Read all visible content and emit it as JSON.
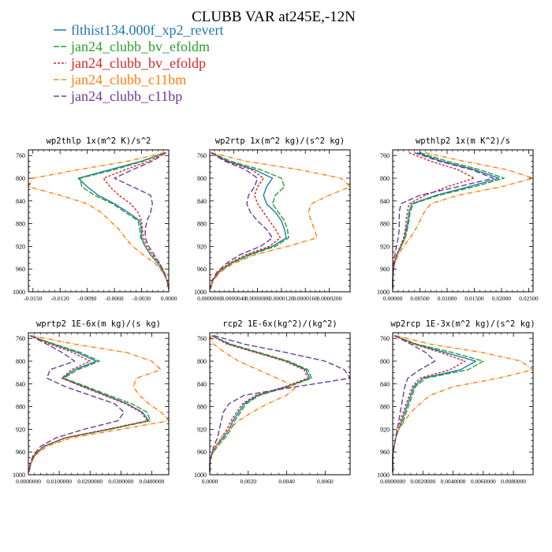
{
  "title": "CLUBB VAR at245E,-12N",
  "legend": [
    {
      "name": "flthist134.000f_xp2_revert",
      "color": "#1f77b4",
      "dash": ""
    },
    {
      "name": "jan24_clubb_bv_efoldm",
      "color": "#2ca02c",
      "dash": "7,2"
    },
    {
      "name": "jan24_clubb_bv_efoldp",
      "color": "#d62728",
      "dash": "3,2"
    },
    {
      "name": "jan24_clubb_c11bm",
      "color": "#ff7f0e",
      "dash": "6,2,1,2"
    },
    {
      "name": "jan24_clubb_c11bp",
      "color": "#6a3d9a",
      "dash": "7,3"
    }
  ],
  "chart_data": [
    {
      "type": "line",
      "title": "wp2thlp  1x(m^2 K)/s^2",
      "ylim": [
        1000,
        750
      ],
      "xlim": [
        -0.0155,
        0.0
      ],
      "xticks": [
        -0.015,
        -0.012,
        -0.009,
        -0.006,
        -0.003,
        0.0
      ],
      "xtick_labels": [
        "-0.0150",
        "-0.0120",
        "-0.0090",
        "-0.0060",
        "-0.0030",
        "0.0000"
      ],
      "yticks": [
        760,
        800,
        840,
        880,
        920,
        960,
        1000
      ],
      "y": [
        755,
        770,
        785,
        800,
        815,
        830,
        845,
        860,
        875,
        890,
        905,
        920,
        935,
        950,
        965,
        980,
        995
      ],
      "series": [
        {
          "values": [
            -0.0004,
            -0.003,
            -0.0065,
            -0.01,
            -0.009,
            -0.0078,
            -0.006,
            -0.0045,
            -0.0032,
            -0.003,
            -0.003,
            -0.0026,
            -0.002,
            -0.0012,
            -0.0006,
            -0.0002,
            0.0
          ]
        },
        {
          "values": [
            -0.0004,
            -0.0028,
            -0.006,
            -0.0098,
            -0.0096,
            -0.0082,
            -0.0062,
            -0.0048,
            -0.0034,
            -0.0032,
            -0.0031,
            -0.0026,
            -0.002,
            -0.0012,
            -0.0006,
            -0.0002,
            0.0
          ]
        },
        {
          "values": [
            -0.0004,
            -0.0022,
            -0.0048,
            -0.0072,
            -0.0065,
            -0.0055,
            -0.0042,
            -0.0034,
            -0.003,
            -0.0029,
            -0.0028,
            -0.0024,
            -0.0018,
            -0.001,
            -0.0005,
            -0.0002,
            0.0
          ]
        },
        {
          "values": [
            -0.0005,
            -0.0045,
            -0.01,
            -0.015,
            -0.0155,
            -0.012,
            -0.009,
            -0.0075,
            -0.0065,
            -0.0055,
            -0.0048,
            -0.004,
            -0.0028,
            -0.0015,
            -0.0007,
            -0.0002,
            0.0
          ]
        },
        {
          "values": [
            -0.0003,
            -0.0018,
            -0.004,
            -0.006,
            -0.004,
            -0.002,
            -0.0018,
            -0.002,
            -0.0024,
            -0.0026,
            -0.0026,
            -0.0022,
            -0.0016,
            -0.001,
            -0.0005,
            -0.0002,
            0.0
          ]
        }
      ]
    },
    {
      "type": "line",
      "title": "wp2rtp  1x(m^2 kg)/(s^2 kg)",
      "ylim": [
        1000,
        750
      ],
      "xlim": [
        0.0,
        2.35e-05
      ],
      "xticks": [
        0.0,
        4e-06,
        8e-06,
        1.2e-05,
        1.6e-05,
        2e-05
      ],
      "xtick_labels": [
        "0.0000000",
        "0.0000040",
        "0.0000080",
        "0.0000120",
        "0.0000160",
        "0.0000200"
      ],
      "yticks": [
        760,
        800,
        840,
        880,
        920,
        960,
        1000
      ],
      "y": [
        755,
        770,
        785,
        800,
        815,
        830,
        845,
        860,
        875,
        890,
        905,
        920,
        935,
        950,
        965,
        980,
        995
      ],
      "series": [
        {
          "values": [
            2e-07,
            3e-06,
            7.5e-06,
            1.05e-05,
            9.5e-06,
            9e-06,
            9.5e-06,
            1.1e-05,
            1.2e-05,
            1.25e-05,
            1.28e-05,
            1.05e-05,
            6.5e-06,
            3.5e-06,
            1.5e-06,
            5e-07,
            1e-07
          ]
        },
        {
          "values": [
            2e-07,
            3.5e-06,
            8.5e-06,
            1.2e-05,
            1.25e-05,
            1.1e-05,
            1.05e-05,
            1.15e-05,
            1.25e-05,
            1.3e-05,
            1.32e-05,
            1.1e-05,
            6.8e-06,
            3.6e-06,
            1.6e-06,
            5e-07,
            1e-07
          ]
        },
        {
          "values": [
            2e-07,
            2.8e-06,
            7e-06,
            9e-06,
            8e-06,
            7.5e-06,
            8e-06,
            9e-06,
            1e-05,
            1.1e-05,
            1.18e-05,
            1e-05,
            6e-06,
            3.2e-06,
            1.4e-06,
            5e-07,
            1e-07
          ]
        },
        {
          "values": [
            3e-07,
            6e-06,
            1.5e-05,
            2.2e-05,
            2.35e-05,
            2e-05,
            1.7e-05,
            1.65e-05,
            1.7e-05,
            1.75e-05,
            1.8e-05,
            1.3e-05,
            7.5e-06,
            4e-06,
            1.8e-06,
            6e-07,
            1e-07
          ]
        },
        {
          "values": [
            2e-07,
            2.5e-06,
            6e-06,
            8e-06,
            7.5e-06,
            6.5e-06,
            6.2e-06,
            6.8e-06,
            8e-06,
            9.5e-06,
            1.05e-05,
            8.5e-06,
            5e-06,
            2.8e-06,
            1.2e-06,
            4e-07,
            1e-07
          ]
        }
      ]
    },
    {
      "type": "line",
      "title": "wpthlp2  1x(m K^2)/s",
      "ylim": [
        1000,
        750
      ],
      "xlim": [
        0.0,
        0.0258
      ],
      "xticks": [
        0.0,
        0.005,
        0.01,
        0.015,
        0.02,
        0.025
      ],
      "xtick_labels": [
        "0.00000",
        "0.00500",
        "0.01000",
        "0.01500",
        "0.02000",
        "0.02500"
      ],
      "yticks": [
        760,
        800,
        840,
        880,
        920,
        960,
        1000
      ],
      "y": [
        755,
        770,
        785,
        800,
        815,
        830,
        845,
        860,
        875,
        890,
        905,
        920,
        935,
        950,
        965,
        980,
        995
      ],
      "series": [
        {
          "values": [
            0.0045,
            0.009,
            0.015,
            0.0195,
            0.014,
            0.008,
            0.0035,
            0.003,
            0.0028,
            0.0025,
            0.0022,
            0.0015,
            0.0008,
            0.0003,
            0.0001,
            0.0,
            0.0
          ]
        },
        {
          "values": [
            0.005,
            0.01,
            0.016,
            0.0205,
            0.015,
            0.0085,
            0.0038,
            0.0032,
            0.003,
            0.0027,
            0.0023,
            0.0016,
            0.0008,
            0.0003,
            0.0001,
            0.0,
            0.0
          ]
        },
        {
          "values": [
            0.003,
            0.007,
            0.012,
            0.015,
            0.01,
            0.006,
            0.003,
            0.0027,
            0.0025,
            0.0023,
            0.002,
            0.0014,
            0.0007,
            0.0003,
            0.0001,
            0.0,
            0.0
          ]
        },
        {
          "values": [
            0.006,
            0.013,
            0.021,
            0.0258,
            0.02,
            0.012,
            0.007,
            0.0058,
            0.005,
            0.0042,
            0.0032,
            0.002,
            0.001,
            0.0004,
            0.0001,
            0.0,
            0.0
          ]
        },
        {
          "values": [
            0.004,
            0.0085,
            0.0145,
            0.0185,
            0.012,
            0.005,
            0.0015,
            0.0012,
            0.0012,
            0.0012,
            0.001,
            0.0007,
            0.0004,
            0.0002,
            0.0001,
            0.0,
            0.0
          ]
        }
      ]
    },
    {
      "type": "line",
      "title": "wprtp2  1E-6x(m kg)/(s kg)",
      "ylim": [
        1000,
        750
      ],
      "xlim": [
        0.0,
        4.55e-05
      ],
      "xticks": [
        0.0,
        1e-05,
        2e-05,
        3e-05,
        4e-05
      ],
      "xtick_labels": [
        "0.0000000",
        "0.0100000",
        "0.0200000",
        "0.0300000",
        "0.0400000"
      ],
      "yticks": [
        760,
        800,
        840,
        880,
        920,
        960,
        1000
      ],
      "y": [
        755,
        770,
        785,
        800,
        815,
        830,
        845,
        860,
        875,
        890,
        905,
        920,
        935,
        950,
        965,
        980,
        995
      ],
      "series": [
        {
          "values": [
            5e-07,
            8e-06,
            1.6e-05,
            2.2e-05,
            1.5e-05,
            1.1e-05,
            1.8e-05,
            2.5e-05,
            3.2e-05,
            3.7e-05,
            3.9e-05,
            2.6e-05,
            1.2e-05,
            5e-06,
            2e-06,
            8e-07,
            2e-07
          ]
        },
        {
          "values": [
            5e-07,
            8.5e-06,
            1.7e-05,
            2.3e-05,
            1.6e-05,
            1.15e-05,
            1.9e-05,
            2.6e-05,
            3.35e-05,
            3.85e-05,
            3.95e-05,
            2.65e-05,
            1.22e-05,
            5.2e-06,
            2.1e-06,
            8e-07,
            2e-07
          ]
        },
        {
          "values": [
            5e-07,
            7e-06,
            1.45e-05,
            2e-05,
            1.4e-05,
            1.08e-05,
            1.75e-05,
            2.45e-05,
            3.15e-05,
            3.65e-05,
            3.85e-05,
            2.55e-05,
            1.18e-05,
            4.9e-06,
            1.9e-06,
            7e-07,
            2e-07
          ]
        },
        {
          "values": [
            1e-06,
            1.5e-05,
            3.2e-05,
            4e-05,
            4.3e-05,
            3.5e-05,
            3.4e-05,
            3.6e-05,
            3.9e-05,
            4.3e-05,
            4.55e-05,
            3e-05,
            1.4e-05,
            6e-06,
            2.4e-06,
            9e-07,
            2e-07
          ]
        },
        {
          "values": [
            5e-07,
            6e-06,
            1.1e-05,
            1.5e-05,
            7e-06,
            6e-06,
            1.2e-05,
            2e-05,
            2.8e-05,
            3.1e-05,
            2.9e-05,
            1.8e-05,
            9e-06,
            4e-06,
            1.6e-06,
            6e-07,
            2e-07
          ]
        }
      ]
    },
    {
      "type": "line",
      "title": "rcp2  1E-6x(kg^2)/(kg^2)",
      "ylim": [
        1000,
        750
      ],
      "xlim": [
        0.0,
        0.0073
      ],
      "xticks": [
        0.0,
        0.002,
        0.004,
        0.006
      ],
      "xtick_labels": [
        "0.0000",
        "0.0020",
        "0.0040",
        "0.0060"
      ],
      "yticks": [
        760,
        800,
        840,
        880,
        920,
        960,
        1000
      ],
      "y": [
        755,
        770,
        785,
        800,
        815,
        830,
        845,
        860,
        875,
        890,
        905,
        920,
        935,
        950,
        965,
        980,
        995
      ],
      "series": [
        {
          "values": [
            0.0001,
            0.001,
            0.0025,
            0.004,
            0.005,
            0.0052,
            0.004,
            0.0025,
            0.0018,
            0.0015,
            0.0012,
            0.001,
            0.0007,
            0.0003,
            0.0001,
            0.0,
            0.0
          ]
        },
        {
          "values": [
            0.0001,
            0.0011,
            0.0026,
            0.0041,
            0.0051,
            0.0053,
            0.0041,
            0.0026,
            0.0019,
            0.0016,
            0.0013,
            0.0011,
            0.0008,
            0.0004,
            0.0001,
            0.0,
            0.0
          ]
        },
        {
          "values": [
            0.0001,
            0.0009,
            0.0024,
            0.0039,
            0.0049,
            0.0051,
            0.0039,
            0.0024,
            0.0017,
            0.0014,
            0.0011,
            0.0009,
            0.0006,
            0.0003,
            0.0001,
            0.0,
            0.0
          ]
        },
        {
          "values": [
            0.0,
            0.0002,
            0.0008,
            0.0015,
            0.0025,
            0.0035,
            0.0045,
            0.004,
            0.003,
            0.0022,
            0.0015,
            0.001,
            0.0006,
            0.0003,
            0.0001,
            0.0,
            0.0
          ]
        },
        {
          "values": [
            0.0002,
            0.0018,
            0.004,
            0.006,
            0.007,
            0.0073,
            0.0045,
            0.0018,
            0.001,
            0.0007,
            0.0006,
            0.0005,
            0.0004,
            0.0002,
            0.0001,
            0.0,
            0.0
          ]
        }
      ]
    },
    {
      "type": "line",
      "title": "wp2rcp  1E-3x(m^2 kg)/(s^2 kg)",
      "ylim": [
        1000,
        750
      ],
      "xlim": [
        0.0,
        9.3e-06
      ],
      "xticks": [
        0.0,
        2e-06,
        4e-06,
        6e-06,
        8e-06
      ],
      "xtick_labels": [
        "0.0000000",
        "0.0020000",
        "0.0040000",
        "0.0060000",
        "0.0080000"
      ],
      "yticks": [
        760,
        800,
        840,
        880,
        920,
        960,
        1000
      ],
      "y": [
        755,
        770,
        785,
        800,
        815,
        830,
        845,
        860,
        875,
        890,
        905,
        920,
        935,
        950,
        965,
        980,
        995
      ],
      "series": [
        {
          "values": [
            1e-07,
            1.5e-06,
            3.5e-06,
            5.5e-06,
            4.5e-06,
            2e-06,
            1.4e-06,
            1.2e-06,
            1e-06,
            8e-07,
            6e-07,
            4e-07,
            2e-07,
            1e-07,
            0.0,
            0.0,
            0.0
          ]
        },
        {
          "values": [
            1e-07,
            1.6e-06,
            4e-06,
            6e-06,
            5e-06,
            2.2e-06,
            1.5e-06,
            1.3e-06,
            1.1e-06,
            9e-07,
            7e-07,
            4e-07,
            2e-07,
            1e-07,
            0.0,
            0.0,
            0.0
          ]
        },
        {
          "values": [
            1e-07,
            1.4e-06,
            3.2e-06,
            4.8e-06,
            3.8e-06,
            1.8e-06,
            1.3e-06,
            1.1e-06,
            9e-07,
            7e-07,
            5e-07,
            3e-07,
            2e-07,
            1e-07,
            0.0,
            0.0,
            0.0
          ]
        },
        {
          "values": [
            2e-07,
            2.5e-06,
            6e-06,
            8.5e-06,
            9.3e-06,
            7e-06,
            4e-06,
            2.5e-06,
            1.8e-06,
            1.2e-06,
            8e-07,
            4e-07,
            2e-07,
            1e-07,
            0.0,
            0.0,
            0.0
          ]
        },
        {
          "values": [
            1e-07,
            1.2e-06,
            2.2e-06,
            2.8e-06,
            1.8e-06,
            1e-06,
            8e-07,
            7e-07,
            6e-07,
            5e-07,
            4e-07,
            3e-07,
            2e-07,
            1e-07,
            0.0,
            0.0,
            0.0
          ]
        }
      ]
    }
  ]
}
